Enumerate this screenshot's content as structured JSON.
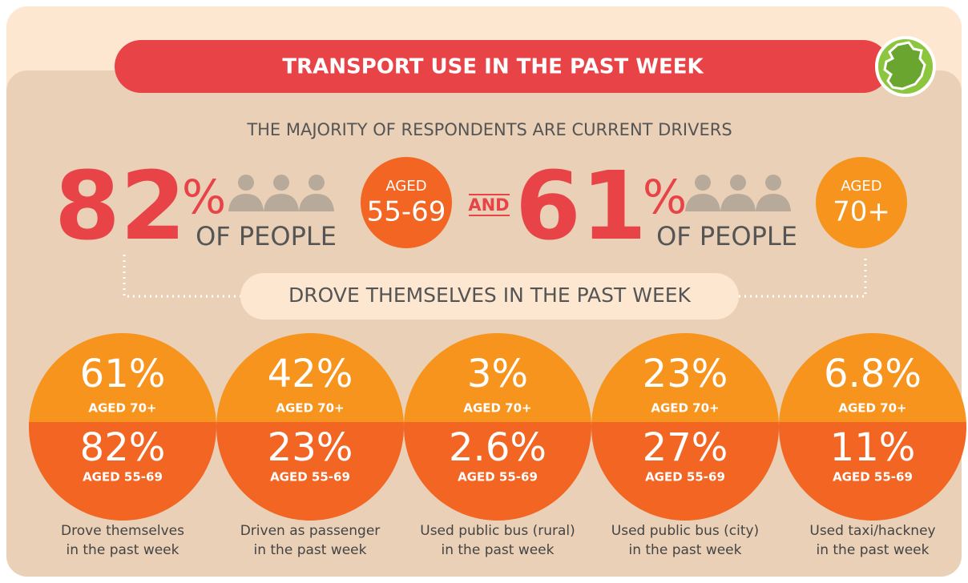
{
  "header": {
    "title": "TRANSPORT USE IN THE PAST WEEK"
  },
  "subtitle": "THE MAJORITY OF RESPONDENTS ARE CURRENT DRIVERS",
  "headline": [
    {
      "value": "82",
      "unit": "%",
      "caption": "OF PEOPLE",
      "age_prefix": "AGED",
      "age": "55-69"
    },
    {
      "value": "61",
      "unit": "%",
      "caption": "OF PEOPLE",
      "age_prefix": "AGED",
      "age": "70+"
    }
  ],
  "connector": "AND",
  "banner": "DROVE THEMSELVES IN THE PAST WEEK",
  "circles": [
    {
      "top_value": "61%",
      "top_label": "AGED 70+",
      "bottom_value": "82%",
      "bottom_label": "AGED 55-69",
      "caption": [
        "Drove themselves",
        "in the past week"
      ]
    },
    {
      "top_value": "42%",
      "top_label": "AGED 70+",
      "bottom_value": "23%",
      "bottom_label": "AGED 55-69",
      "caption": [
        "Driven as passenger",
        "in the past week"
      ]
    },
    {
      "top_value": "3%",
      "top_label": "AGED 70+",
      "bottom_value": "2.6%",
      "bottom_label": "AGED 55-69",
      "caption": [
        "Used public bus (rural)",
        "in the past week"
      ]
    },
    {
      "top_value": "23%",
      "top_label": "AGED 70+",
      "bottom_value": "27%",
      "bottom_label": "AGED 55-69",
      "caption": [
        "Used public bus (city)",
        "in the past week"
      ]
    },
    {
      "top_value": "6.8%",
      "top_label": "AGED 70+",
      "bottom_value": "11%",
      "bottom_label": "AGED 55-69",
      "caption": [
        "Used taxi/hackney",
        "in the past week"
      ]
    }
  ]
}
